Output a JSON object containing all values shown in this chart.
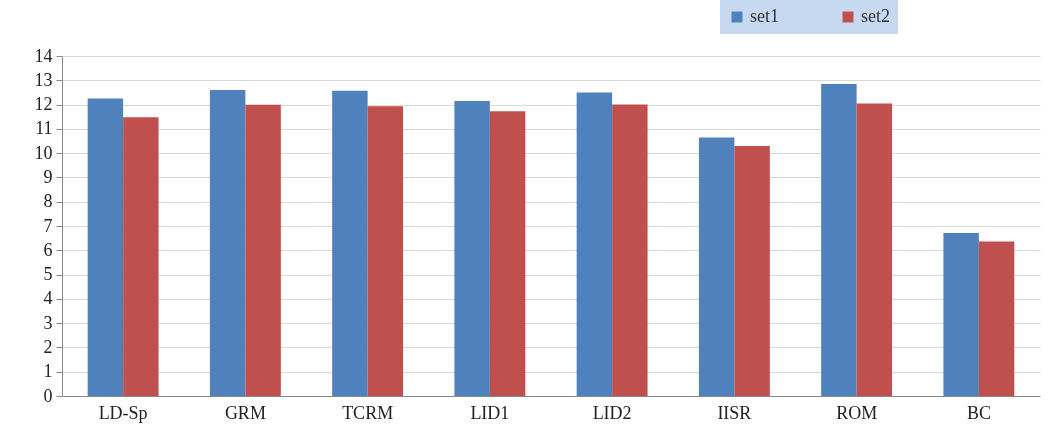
{
  "chart_data": {
    "type": "bar",
    "categories": [
      "LD-Sp",
      "GRM",
      "TCRM",
      "LID1",
      "LID2",
      "IISR",
      "ROM",
      "BC"
    ],
    "series": [
      {
        "name": "set1",
        "color": "#4f81bd",
        "values": [
          12.25,
          12.6,
          12.57,
          12.15,
          12.5,
          10.64,
          12.85,
          6.71
        ]
      },
      {
        "name": "set2",
        "color": "#c0504d",
        "values": [
          11.48,
          11.99,
          11.93,
          11.72,
          12.0,
          10.29,
          12.04,
          6.36
        ]
      }
    ],
    "ylim": [
      0,
      14
    ],
    "yticks": [
      0,
      1,
      2,
      3,
      4,
      5,
      6,
      7,
      8,
      9,
      10,
      11,
      12,
      13,
      14
    ],
    "grid": "y",
    "legend": "top right"
  }
}
